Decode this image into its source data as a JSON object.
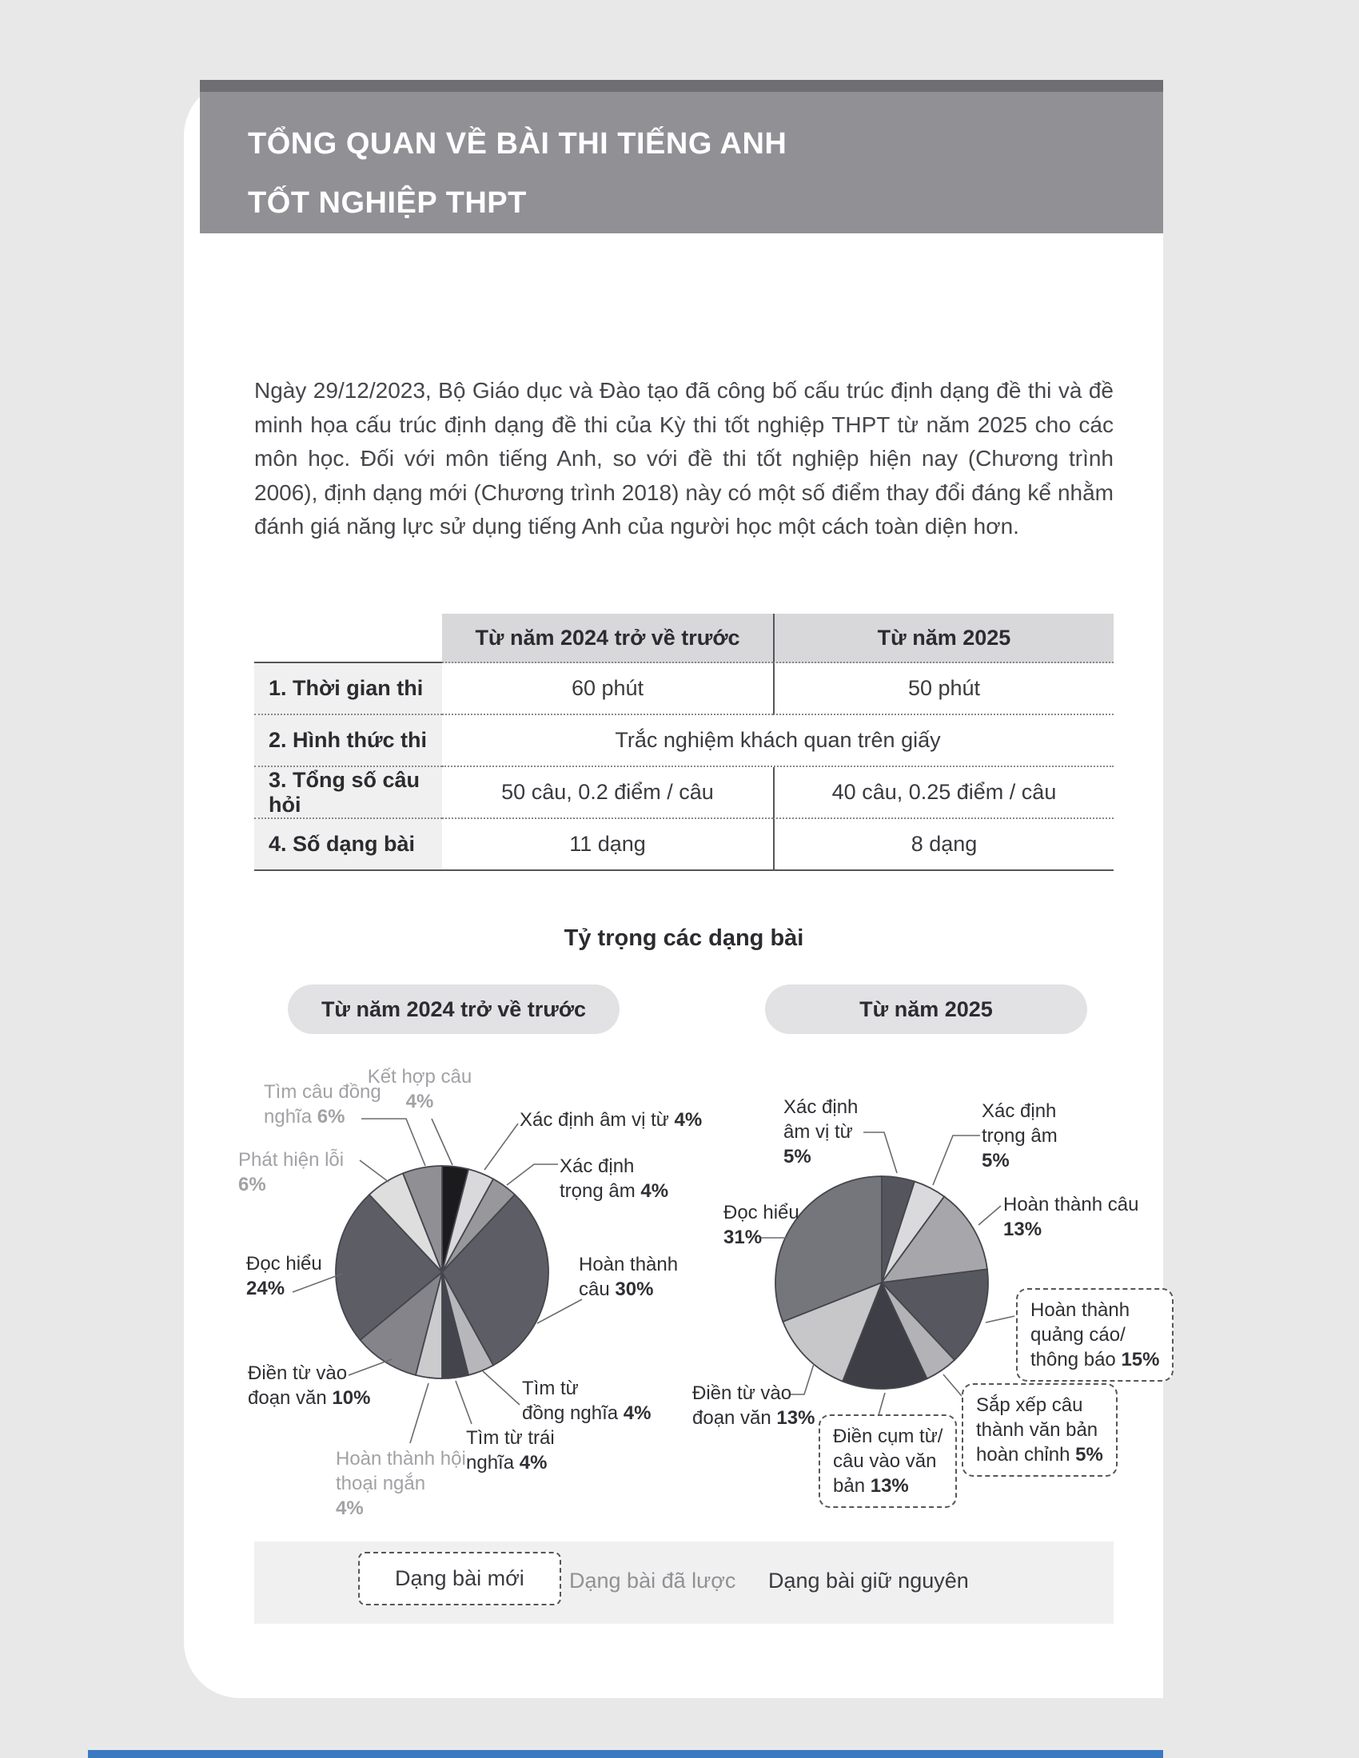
{
  "header": {
    "title_line1": "TỔNG QUAN VỀ BÀI THI TIẾNG ANH",
    "title_line2": "TỐT NGHIỆP THPT"
  },
  "intro": {
    "text": "Ngày 29/12/2023, Bộ Giáo dục và Đào tạo đã công bố cấu trúc định dạng đề thi và đề minh họa cấu trúc định dạng đề thi của Kỳ thi tốt nghiệp THPT từ năm 2025 cho các môn học. Đối với môn tiếng Anh, so với đề thi tốt nghiệp hiện nay (Chương trình 2006), định dạng mới (Chương trình 2018) này có một số điểm thay đổi đáng kể nhằm đánh giá năng lực sử dụng tiếng Anh của người học một cách toàn diện hơn."
  },
  "comparison_table": {
    "col_headers": [
      "Từ năm 2024 trở về trước",
      "Từ năm 2025"
    ],
    "rows": [
      {
        "label": "1. Thời gian thi",
        "before": "60 phút",
        "after": "50 phút"
      },
      {
        "label": "2. Hình thức thi",
        "merged": "Trắc nghiệm khách quan trên giấy"
      },
      {
        "label": "3. Tổng số câu hỏi",
        "before": "50 câu, 0.2 điểm / câu",
        "after": "40 câu, 0.25 điểm / câu"
      },
      {
        "label": "4. Số dạng bài",
        "before": "11 dạng",
        "after": "8 dạng"
      }
    ]
  },
  "charts": {
    "section_title": "Tỷ trọng các dạng bài",
    "left_pill_label": "Từ năm 2024 trở về trước",
    "right_pill_label": "Từ năm 2025",
    "legend": {
      "new_label": "Dạng bài mới",
      "removed_label": "Dạng bài đã lược",
      "kept_label": "Dạng bài giữ nguyên"
    }
  },
  "chart_data": [
    {
      "type": "pie",
      "title": "Từ năm 2024 trở về trước",
      "unit": "%",
      "slices": [
        {
          "label": "Kết hợp câu",
          "value": 4,
          "pct": "4%",
          "color": "#1b1b1e",
          "status": "removed",
          "lines": [
            "Kết hợp câu",
            "4%"
          ]
        },
        {
          "label": "Xác định âm vị từ",
          "value": 4,
          "pct": "4%",
          "color": "#d9d9db",
          "status": "kept",
          "lines": [
            "Xác định âm vị từ 4%"
          ]
        },
        {
          "label": "Xác định trọng âm",
          "value": 4,
          "pct": "4%",
          "color": "#97979c",
          "status": "kept",
          "lines": [
            "Xác định",
            "trọng âm 4%"
          ]
        },
        {
          "label": "Hoàn thành câu",
          "value": 30,
          "pct": "30%",
          "color": "#5d5d66",
          "status": "kept",
          "lines": [
            "Hoàn thành",
            "câu 30%"
          ]
        },
        {
          "label": "Tìm từ đồng nghĩa",
          "value": 4,
          "pct": "4%",
          "color": "#b7b7bb",
          "status": "kept",
          "lines": [
            "Tìm từ",
            "đồng nghĩa 4%"
          ]
        },
        {
          "label": "Tìm từ trái nghĩa",
          "value": 4,
          "pct": "4%",
          "color": "#44444c",
          "status": "kept",
          "lines": [
            "Tìm từ trái",
            "nghĩa 4%"
          ]
        },
        {
          "label": "Hoàn thành hội thoại ngắn",
          "value": 4,
          "pct": "4%",
          "color": "#cbcbce",
          "status": "removed",
          "lines": [
            "Hoàn thành hội",
            "thoại ngắn",
            "4%"
          ]
        },
        {
          "label": "Điền từ vào đoạn văn",
          "value": 10,
          "pct": "10%",
          "color": "#84848a",
          "status": "kept",
          "lines": [
            "Điền từ vào",
            "đoạn văn 10%"
          ]
        },
        {
          "label": "Đọc hiểu",
          "value": 24,
          "pct": "24%",
          "color": "#5d5d66",
          "status": "kept",
          "lines": [
            "Đọc hiểu",
            "24%"
          ]
        },
        {
          "label": "Phát hiện lỗi",
          "value": 6,
          "pct": "6%",
          "color": "#dededf",
          "status": "removed",
          "lines": [
            "Phát hiện lỗi",
            "6%"
          ]
        },
        {
          "label": "Tìm câu đồng nghĩa",
          "value": 6,
          "pct": "6%",
          "color": "#8f8f94",
          "status": "removed",
          "lines": [
            "Tìm câu đồng",
            "nghĩa 6%"
          ]
        }
      ]
    },
    {
      "type": "pie",
      "title": "Từ năm 2025",
      "unit": "%",
      "slices": [
        {
          "label": "Xác định âm vị từ",
          "value": 5,
          "pct": "5%",
          "color": "#55555e",
          "status": "kept",
          "lines": [
            "Xác định",
            "âm vị từ",
            "5%"
          ]
        },
        {
          "label": "Xác định trọng âm",
          "value": 5,
          "pct": "5%",
          "color": "#dadadc",
          "status": "kept",
          "lines": [
            "Xác định",
            "trọng âm",
            "5%"
          ]
        },
        {
          "label": "Hoàn thành câu",
          "value": 13,
          "pct": "13%",
          "color": "#a7a7ab",
          "status": "kept",
          "lines": [
            "Hoàn thành câu",
            "13%"
          ]
        },
        {
          "label": "Hoàn thành quảng cáo/thông báo",
          "value": 15,
          "pct": "15%",
          "color": "#575760",
          "status": "new",
          "lines": [
            "Hoàn thành",
            "quảng cáo/",
            "thông báo 15%"
          ]
        },
        {
          "label": "Sắp xếp câu thành văn bản hoàn chỉnh",
          "value": 5,
          "pct": "5%",
          "color": "#b3b3b7",
          "status": "new",
          "lines": [
            "Sắp xếp câu",
            "thành văn bản",
            "hoàn chỉnh 5%"
          ]
        },
        {
          "label": "Điền cụm từ/câu vào văn bản",
          "value": 13,
          "pct": "13%",
          "color": "#3e3e46",
          "status": "new",
          "lines": [
            "Điền cụm từ/",
            "câu vào văn",
            "bản 13%"
          ]
        },
        {
          "label": "Điền từ vào đoạn văn",
          "value": 13,
          "pct": "13%",
          "color": "#c7c7ca",
          "status": "kept",
          "lines": [
            "Điền từ vào",
            "đoạn văn 13%"
          ]
        },
        {
          "label": "Đọc hiểu",
          "value": 31,
          "pct": "31%",
          "color": "#75757c",
          "status": "kept",
          "lines": [
            "Đọc hiểu",
            "31%"
          ]
        }
      ]
    }
  ],
  "colors": {
    "page_background": "#e8e8e9",
    "card_background": "#ffffff",
    "header_background": "#909095",
    "header_top_band": "#6e6e73",
    "table_header_background": "#d8d8da",
    "table_label_background": "#f0f0f0",
    "pill_background": "#e2e2e4",
    "legend_background": "#f0f0f1",
    "removed_label_text": "#a2a2a6",
    "bottom_bar": "#3b79c2"
  }
}
